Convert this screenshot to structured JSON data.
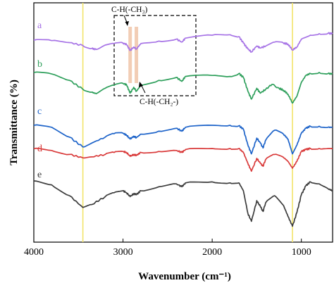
{
  "chart_data": {
    "type": "line",
    "xlabel": "Wavenumber (cm⁻¹)",
    "ylabel": "Transmittance (%)",
    "xlim": [
      4000,
      650
    ],
    "x_reversed": true,
    "x_ticks": [
      {
        "value": 4000,
        "label": "4000"
      },
      {
        "value": 3000,
        "label": "3000"
      },
      {
        "value": 2000,
        "label": "2000"
      },
      {
        "value": 1000,
        "label": "1000"
      }
    ],
    "y_ticks_shown": false,
    "grid": false,
    "reference_lines": [
      {
        "x": 3450,
        "color": "#f2e46a"
      },
      {
        "x": 1100,
        "color": "#f2e46a"
      }
    ],
    "highlight_bands": [
      {
        "x": 2920,
        "color": "#f0c4a8"
      },
      {
        "x": 2850,
        "color": "#f0c4a8"
      }
    ],
    "annotations": [
      {
        "text": "C-H(-CH₃)",
        "x": 2920
      },
      {
        "text": "C-H(-CH₂-)",
        "x": 2850
      }
    ],
    "series": [
      {
        "name": "a",
        "color": "#a774e6",
        "points": [
          [
            4000,
            0.5
          ],
          [
            3800,
            0.55
          ],
          [
            3600,
            0.75
          ],
          [
            3450,
            1.05
          ],
          [
            3350,
            1.35
          ],
          [
            3300,
            1.45
          ],
          [
            3200,
            1.0
          ],
          [
            3100,
            0.85
          ],
          [
            3000,
            0.8
          ],
          [
            2960,
            0.95
          ],
          [
            2920,
            1.55
          ],
          [
            2880,
            1.2
          ],
          [
            2850,
            1.4
          ],
          [
            2800,
            0.85
          ],
          [
            2600,
            0.6
          ],
          [
            2400,
            0.4
          ],
          [
            2340,
            0.7
          ],
          [
            2300,
            0.3
          ],
          [
            2000,
            0.0
          ],
          [
            1800,
            -0.05
          ],
          [
            1700,
            0.15
          ],
          [
            1650,
            0.8
          ],
          [
            1600,
            1.4
          ],
          [
            1560,
            1.7
          ],
          [
            1500,
            1.1
          ],
          [
            1460,
            1.3
          ],
          [
            1400,
            1.1
          ],
          [
            1300,
            0.7
          ],
          [
            1200,
            0.8
          ],
          [
            1150,
            0.9
          ],
          [
            1100,
            1.5
          ],
          [
            1050,
            1.2
          ],
          [
            1000,
            0.4
          ],
          [
            900,
            0.0
          ],
          [
            800,
            -0.15
          ],
          [
            700,
            -0.2
          ],
          [
            650,
            -0.15
          ]
        ]
      },
      {
        "name": "b",
        "color": "#2e9f5b",
        "points": [
          [
            4000,
            0.0
          ],
          [
            3800,
            0.15
          ],
          [
            3600,
            0.8
          ],
          [
            3450,
            1.7
          ],
          [
            3350,
            2.0
          ],
          [
            3300,
            2.15
          ],
          [
            3200,
            1.6
          ],
          [
            3100,
            1.3
          ],
          [
            3000,
            1.1
          ],
          [
            2960,
            1.25
          ],
          [
            2920,
            2.1
          ],
          [
            2880,
            1.5
          ],
          [
            2850,
            1.9
          ],
          [
            2800,
            1.3
          ],
          [
            2600,
            0.8
          ],
          [
            2400,
            0.5
          ],
          [
            2340,
            0.9
          ],
          [
            2300,
            0.4
          ],
          [
            2000,
            0.3
          ],
          [
            1800,
            0.4
          ],
          [
            1700,
            0.1
          ],
          [
            1650,
            0.5
          ],
          [
            1600,
            1.9
          ],
          [
            1560,
            2.7
          ],
          [
            1500,
            1.6
          ],
          [
            1460,
            2.1
          ],
          [
            1400,
            1.7
          ],
          [
            1330,
            1.2
          ],
          [
            1250,
            1.6
          ],
          [
            1200,
            1.8
          ],
          [
            1150,
            2.2
          ],
          [
            1100,
            3.1
          ],
          [
            1050,
            2.4
          ],
          [
            1000,
            1.0
          ],
          [
            950,
            0.3
          ],
          [
            900,
            0.1
          ],
          [
            800,
            0.0
          ],
          [
            700,
            0.1
          ],
          [
            650,
            0.15
          ]
        ]
      },
      {
        "name": "c",
        "color": "#1d63c9",
        "points": [
          [
            4000,
            0.0
          ],
          [
            3800,
            0.2
          ],
          [
            3600,
            1.2
          ],
          [
            3450,
            2.2
          ],
          [
            3350,
            1.8
          ],
          [
            3200,
            1.2
          ],
          [
            3100,
            0.85
          ],
          [
            3000,
            0.8
          ],
          [
            2960,
            1.0
          ],
          [
            2920,
            1.4
          ],
          [
            2880,
            1.1
          ],
          [
            2850,
            1.25
          ],
          [
            2800,
            0.9
          ],
          [
            2600,
            0.6
          ],
          [
            2400,
            0.3
          ],
          [
            2340,
            0.6
          ],
          [
            2300,
            0.2
          ],
          [
            2000,
            0.0
          ],
          [
            1800,
            0.0
          ],
          [
            1700,
            0.05
          ],
          [
            1650,
            0.4
          ],
          [
            1600,
            2.0
          ],
          [
            1560,
            2.9
          ],
          [
            1500,
            1.3
          ],
          [
            1460,
            1.8
          ],
          [
            1430,
            2.3
          ],
          [
            1400,
            1.5
          ],
          [
            1300,
            0.5
          ],
          [
            1200,
            0.9
          ],
          [
            1150,
            1.4
          ],
          [
            1100,
            2.9
          ],
          [
            1050,
            2.0
          ],
          [
            1000,
            0.8
          ],
          [
            950,
            0.3
          ],
          [
            900,
            0.1
          ],
          [
            800,
            0.1
          ],
          [
            700,
            0.2
          ],
          [
            650,
            0.2
          ]
        ]
      },
      {
        "name": "d",
        "color": "#d93a3a",
        "points": [
          [
            4000,
            0.0
          ],
          [
            3800,
            0.2
          ],
          [
            3600,
            0.6
          ],
          [
            3450,
            0.95
          ],
          [
            3350,
            0.85
          ],
          [
            3200,
            0.6
          ],
          [
            3100,
            0.4
          ],
          [
            3000,
            0.3
          ],
          [
            2960,
            0.4
          ],
          [
            2920,
            0.8
          ],
          [
            2880,
            0.6
          ],
          [
            2850,
            0.7
          ],
          [
            2800,
            0.4
          ],
          [
            2600,
            0.3
          ],
          [
            2400,
            0.2
          ],
          [
            2340,
            0.4
          ],
          [
            2300,
            0.1
          ],
          [
            2000,
            0.0
          ],
          [
            1800,
            0.0
          ],
          [
            1700,
            0.0
          ],
          [
            1650,
            0.4
          ],
          [
            1600,
            1.5
          ],
          [
            1560,
            2.3
          ],
          [
            1500,
            1.0
          ],
          [
            1460,
            1.5
          ],
          [
            1430,
            1.8
          ],
          [
            1400,
            1.1
          ],
          [
            1300,
            0.6
          ],
          [
            1200,
            0.9
          ],
          [
            1150,
            1.3
          ],
          [
            1100,
            2.0
          ],
          [
            1050,
            1.3
          ],
          [
            1000,
            0.3
          ],
          [
            950,
            0.1
          ],
          [
            900,
            0.0
          ],
          [
            800,
            0.0
          ],
          [
            700,
            0.0
          ],
          [
            650,
            0.0
          ]
        ]
      },
      {
        "name": "e",
        "color": "#3c3c3c",
        "points": [
          [
            4000,
            0.0
          ],
          [
            3800,
            0.4
          ],
          [
            3600,
            1.5
          ],
          [
            3450,
            2.7
          ],
          [
            3350,
            2.4
          ],
          [
            3200,
            1.6
          ],
          [
            3100,
            1.2
          ],
          [
            3000,
            1.0
          ],
          [
            2960,
            1.2
          ],
          [
            2920,
            1.6
          ],
          [
            2880,
            1.3
          ],
          [
            2850,
            1.4
          ],
          [
            2800,
            1.0
          ],
          [
            2600,
            0.6
          ],
          [
            2400,
            0.3
          ],
          [
            2340,
            0.6
          ],
          [
            2300,
            0.2
          ],
          [
            2000,
            0.1
          ],
          [
            1800,
            0.2
          ],
          [
            1700,
            0.2
          ],
          [
            1650,
            1.0
          ],
          [
            1600,
            3.3
          ],
          [
            1560,
            4.1
          ],
          [
            1500,
            2.0
          ],
          [
            1460,
            2.6
          ],
          [
            1430,
            3.1
          ],
          [
            1400,
            2.2
          ],
          [
            1300,
            1.5
          ],
          [
            1200,
            2.5
          ],
          [
            1150,
            3.6
          ],
          [
            1100,
            4.6
          ],
          [
            1050,
            3.2
          ],
          [
            1000,
            1.4
          ],
          [
            950,
            0.5
          ],
          [
            900,
            0.1
          ],
          [
            800,
            0.3
          ],
          [
            700,
            0.8
          ],
          [
            650,
            1.0
          ]
        ]
      }
    ]
  }
}
